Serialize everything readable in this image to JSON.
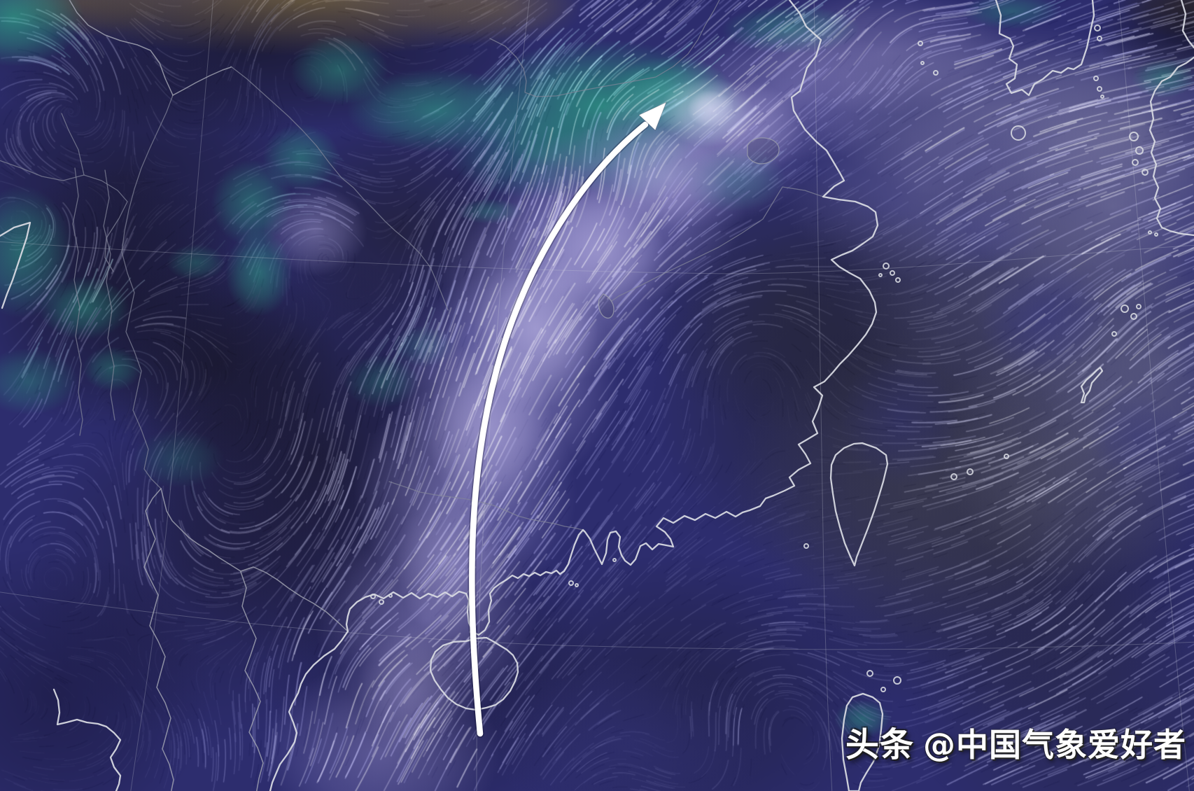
{
  "map": {
    "kind": "wind-flow-streamline-map",
    "region": "southeast-china-and-east-china-sea",
    "visible_features": [
      "china-coastline",
      "hainan-island",
      "taiwan-island",
      "luzon-island",
      "korea-peninsula",
      "kyushu-island",
      "okinawa-island",
      "gulf-of-tonkin",
      "pearl-river-delta"
    ]
  },
  "annotation": {
    "name": "trajectory-arrow",
    "shape": "curved-arrow-pointing-north-northeast",
    "color": "#ffffff"
  },
  "watermark": {
    "brand": "头条",
    "handle": "@中国气象爱好者"
  },
  "palette": {
    "sea_indigo": "#2d2d6e",
    "calm_dark": "#15131f",
    "wind_teal": "#2f9e85",
    "wind_bright_core": "#e9fcf6",
    "stream_lavender": "#a89fe0",
    "stream_gray": "#9a9aaa",
    "land_tan": "#8d7747",
    "coastline": "#d6d8e0",
    "border_line": "#a6a9b5",
    "river_line": "#84879a",
    "graticule": "#c9ccd8",
    "arrow": "#ffffff"
  }
}
